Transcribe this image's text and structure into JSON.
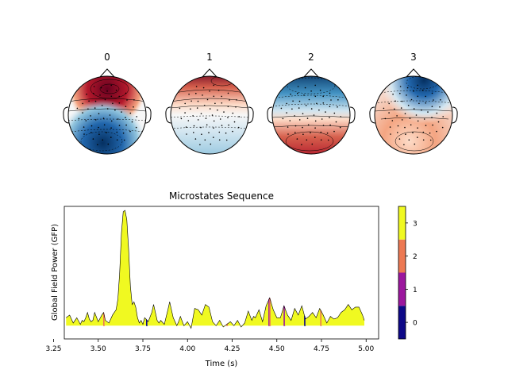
{
  "chart_data": [
    {
      "type": "topomap",
      "maps": [
        {
          "label": "0",
          "pattern": "frontal-red / occipital-blue"
        },
        {
          "label": "1",
          "pattern": "frontal-red / posterior-blue"
        },
        {
          "label": "2",
          "pattern": "frontal-blue / posterior-red"
        },
        {
          "label": "3",
          "pattern": "right-frontal-blue / posterior-red"
        }
      ],
      "colormap": "RdBu_r"
    },
    {
      "type": "area",
      "title": "Microstates Sequence",
      "xlabel": "Time (s)",
      "ylabel": "Global Field Power (GFP)",
      "xlim": [
        3.31,
        5.07
      ],
      "x_ticks": [
        "3.25",
        "3.50",
        "3.75",
        "4.00",
        "4.25",
        "4.50",
        "4.75",
        "5.00"
      ],
      "x_tick_values": [
        3.25,
        3.5,
        3.75,
        4.0,
        4.25,
        4.5,
        4.75,
        5.0
      ],
      "ylim": [
        0,
        1.0
      ],
      "y_ticks_shown": false,
      "gfp_series": {
        "x": [
          3.32,
          3.34,
          3.36,
          3.38,
          3.4,
          3.41,
          3.42,
          3.43,
          3.44,
          3.45,
          3.46,
          3.47,
          3.48,
          3.5,
          3.52,
          3.53,
          3.54,
          3.56,
          3.58,
          3.6,
          3.61,
          3.62,
          3.63,
          3.64,
          3.65,
          3.66,
          3.67,
          3.68,
          3.69,
          3.7,
          3.71,
          3.72,
          3.73,
          3.74,
          3.75,
          3.76,
          3.78,
          3.8,
          3.81,
          3.82,
          3.83,
          3.84,
          3.85,
          3.87,
          3.89,
          3.9,
          3.91,
          3.92,
          3.94,
          3.95,
          3.96,
          3.98,
          4.0,
          4.02,
          4.04,
          4.06,
          4.08,
          4.1,
          4.12,
          4.14,
          4.16,
          4.18,
          4.2,
          4.22,
          4.24,
          4.26,
          4.28,
          4.3,
          4.32,
          4.34,
          4.36,
          4.37,
          4.38,
          4.4,
          4.42,
          4.44,
          4.46,
          4.48,
          4.5,
          4.52,
          4.54,
          4.56,
          4.58,
          4.6,
          4.62,
          4.64,
          4.66,
          4.68,
          4.7,
          4.72,
          4.74,
          4.76,
          4.78,
          4.8,
          4.82,
          4.84,
          4.86,
          4.88,
          4.9,
          4.92,
          4.94,
          4.96,
          4.98,
          4.99
        ],
        "y": [
          0.16,
          0.18,
          0.12,
          0.16,
          0.11,
          0.14,
          0.13,
          0.16,
          0.2,
          0.15,
          0.13,
          0.14,
          0.2,
          0.13,
          0.18,
          0.2,
          0.14,
          0.12,
          0.18,
          0.22,
          0.3,
          0.5,
          0.8,
          0.96,
          0.97,
          0.9,
          0.68,
          0.4,
          0.26,
          0.28,
          0.24,
          0.16,
          0.12,
          0.14,
          0.11,
          0.16,
          0.13,
          0.2,
          0.26,
          0.2,
          0.14,
          0.12,
          0.14,
          0.11,
          0.22,
          0.28,
          0.22,
          0.16,
          0.1,
          0.13,
          0.17,
          0.1,
          0.13,
          0.08,
          0.23,
          0.22,
          0.18,
          0.26,
          0.24,
          0.13,
          0.1,
          0.14,
          0.09,
          0.11,
          0.13,
          0.1,
          0.14,
          0.09,
          0.12,
          0.21,
          0.14,
          0.17,
          0.16,
          0.22,
          0.13,
          0.25,
          0.31,
          0.22,
          0.16,
          0.16,
          0.25,
          0.18,
          0.14,
          0.23,
          0.18,
          0.25,
          0.15,
          0.17,
          0.2,
          0.16,
          0.23,
          0.18,
          0.12,
          0.17,
          0.15,
          0.16,
          0.2,
          0.22,
          0.26,
          0.22,
          0.24,
          0.24,
          0.18,
          0.14
        ]
      },
      "segments": [
        {
          "start": 3.32,
          "end": 3.53,
          "state": 3
        },
        {
          "start": 3.53,
          "end": 3.535,
          "state": 2
        },
        {
          "start": 3.535,
          "end": 3.77,
          "state": 3
        },
        {
          "start": 3.77,
          "end": 3.775,
          "state": 0
        },
        {
          "start": 3.775,
          "end": 4.22,
          "state": 3
        },
        {
          "start": 4.22,
          "end": 4.225,
          "state": 2
        },
        {
          "start": 4.225,
          "end": 4.455,
          "state": 3
        },
        {
          "start": 4.455,
          "end": 4.46,
          "state": 1
        },
        {
          "start": 4.46,
          "end": 4.465,
          "state": 2
        },
        {
          "start": 4.465,
          "end": 4.54,
          "state": 3
        },
        {
          "start": 4.54,
          "end": 4.545,
          "state": 1
        },
        {
          "start": 4.545,
          "end": 4.655,
          "state": 3
        },
        {
          "start": 4.655,
          "end": 4.66,
          "state": 0
        },
        {
          "start": 4.66,
          "end": 4.745,
          "state": 3
        },
        {
          "start": 4.745,
          "end": 4.75,
          "state": 2
        },
        {
          "start": 4.75,
          "end": 4.99,
          "state": 3
        }
      ],
      "colorbar": {
        "ticks": [
          "0",
          "1",
          "2",
          "3"
        ],
        "colors": [
          "#0d0887",
          "#9c179e",
          "#ed7953",
          "#f0f921"
        ]
      },
      "grid": false
    }
  ]
}
